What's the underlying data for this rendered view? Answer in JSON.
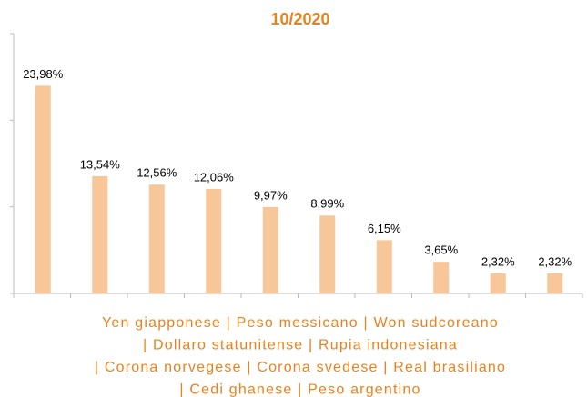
{
  "chart_data": {
    "type": "bar",
    "title": "10/2020",
    "categories": [
      null,
      null,
      null,
      null,
      null,
      null,
      null,
      null,
      null,
      null
    ],
    "values": [
      23.98,
      13.54,
      12.56,
      12.06,
      9.97,
      8.99,
      6.15,
      3.65,
      2.32,
      2.32
    ],
    "value_labels": [
      "23,98%",
      "13,54%",
      "12,56%",
      "12,06%",
      "9,97%",
      "8,99%",
      "6,15%",
      "3,65%",
      "2,32%",
      "2,32%"
    ],
    "color": "#f7c699",
    "ylim": [
      0,
      30
    ],
    "yticks": [
      0,
      10,
      20,
      30
    ],
    "caption": [
      "Yen giapponese | Peso messicano | Won sudcoreano",
      "| Dollaro statunitense | Rupia indonesiana",
      "| Corona norvegese | Corona svedese | Real brasiliano",
      "| Cedi ghanese | Peso argentino"
    ]
  }
}
